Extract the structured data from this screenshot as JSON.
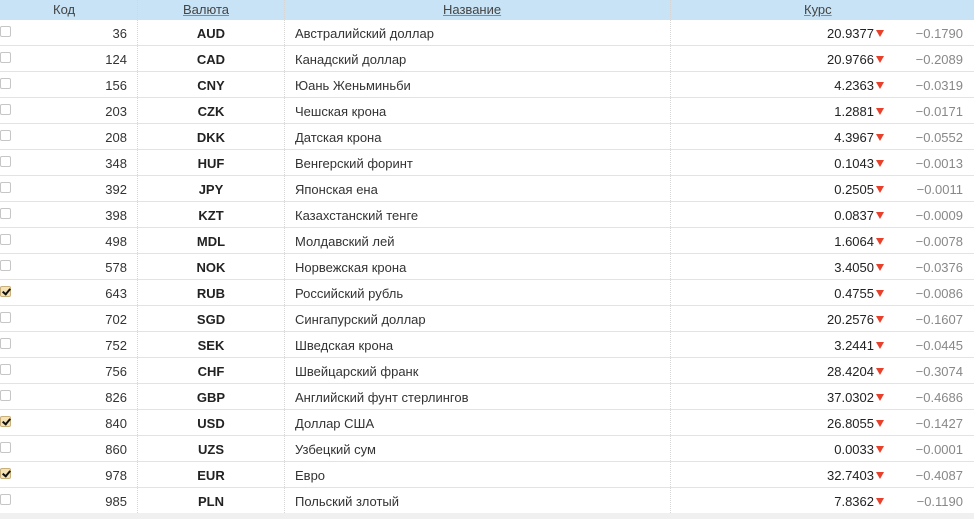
{
  "header": {
    "code": "Код",
    "currency": "Валюта",
    "name": "Название",
    "rate": "Курс"
  },
  "colors": {
    "header_bg": "#c7e3f5",
    "down_arrow": "#e8402a"
  },
  "rows": [
    {
      "checked": false,
      "code": "36",
      "currency": "AUD",
      "name": "Австралийский доллар",
      "rate": "20.9377",
      "trend": "down",
      "change": "−0.1790"
    },
    {
      "checked": false,
      "code": "124",
      "currency": "CAD",
      "name": "Канадский доллар",
      "rate": "20.9766",
      "trend": "down",
      "change": "−0.2089"
    },
    {
      "checked": false,
      "code": "156",
      "currency": "CNY",
      "name": "Юань Женьминьби",
      "rate": "4.2363",
      "trend": "down",
      "change": "−0.0319"
    },
    {
      "checked": false,
      "code": "203",
      "currency": "CZK",
      "name": "Чешская крона",
      "rate": "1.2881",
      "trend": "down",
      "change": "−0.0171"
    },
    {
      "checked": false,
      "code": "208",
      "currency": "DKK",
      "name": "Датская крона",
      "rate": "4.3967",
      "trend": "down",
      "change": "−0.0552"
    },
    {
      "checked": false,
      "code": "348",
      "currency": "HUF",
      "name": "Венгерский форинт",
      "rate": "0.1043",
      "trend": "down",
      "change": "−0.0013"
    },
    {
      "checked": false,
      "code": "392",
      "currency": "JPY",
      "name": "Японская ена",
      "rate": "0.2505",
      "trend": "down",
      "change": "−0.0011"
    },
    {
      "checked": false,
      "code": "398",
      "currency": "KZT",
      "name": "Казахстанский тенге",
      "rate": "0.0837",
      "trend": "down",
      "change": "−0.0009"
    },
    {
      "checked": false,
      "code": "498",
      "currency": "MDL",
      "name": "Молдавский лей",
      "rate": "1.6064",
      "trend": "down",
      "change": "−0.0078"
    },
    {
      "checked": false,
      "code": "578",
      "currency": "NOK",
      "name": "Норвежская крона",
      "rate": "3.4050",
      "trend": "down",
      "change": "−0.0376"
    },
    {
      "checked": true,
      "code": "643",
      "currency": "RUB",
      "name": "Российский рубль",
      "rate": "0.4755",
      "trend": "down",
      "change": "−0.0086"
    },
    {
      "checked": false,
      "code": "702",
      "currency": "SGD",
      "name": "Сингапурский доллар",
      "rate": "20.2576",
      "trend": "down",
      "change": "−0.1607"
    },
    {
      "checked": false,
      "code": "752",
      "currency": "SEK",
      "name": "Шведская крона",
      "rate": "3.2441",
      "trend": "down",
      "change": "−0.0445"
    },
    {
      "checked": false,
      "code": "756",
      "currency": "CHF",
      "name": "Швейцарский франк",
      "rate": "28.4204",
      "trend": "down",
      "change": "−0.3074"
    },
    {
      "checked": false,
      "code": "826",
      "currency": "GBP",
      "name": "Английский фунт стерлингов",
      "rate": "37.0302",
      "trend": "down",
      "change": "−0.4686"
    },
    {
      "checked": true,
      "code": "840",
      "currency": "USD",
      "name": "Доллар США",
      "rate": "26.8055",
      "trend": "down",
      "change": "−0.1427"
    },
    {
      "checked": false,
      "code": "860",
      "currency": "UZS",
      "name": "Узбецкий сум",
      "rate": "0.0033",
      "trend": "down",
      "change": "−0.0001"
    },
    {
      "checked": true,
      "code": "978",
      "currency": "EUR",
      "name": "Евро",
      "rate": "32.7403",
      "trend": "down",
      "change": "−0.4087"
    },
    {
      "checked": false,
      "code": "985",
      "currency": "PLN",
      "name": "Польский злотый",
      "rate": "7.8362",
      "trend": "down",
      "change": "−0.1190"
    }
  ]
}
